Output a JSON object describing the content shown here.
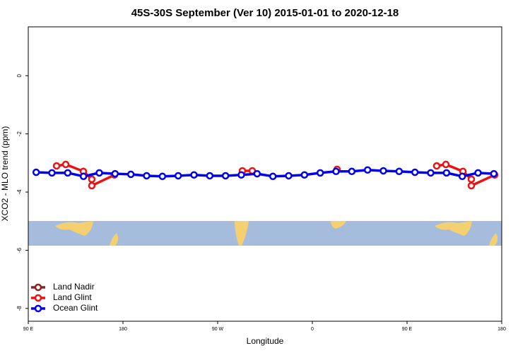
{
  "chart_data": {
    "type": "line",
    "title": "45S-30S September (Ver 10)   2015-01-01 to 2020-12-18",
    "xlabel": "Longitude",
    "ylabel": "XCO2 - MLO trend (ppm)",
    "xlim": [
      90,
      540
    ],
    "xticks": [
      {
        "value": 90,
        "label": "90 E"
      },
      {
        "value": 180,
        "label": "180"
      },
      {
        "value": 270,
        "label": "90 W"
      },
      {
        "value": 360,
        "label": "0"
      },
      {
        "value": 450,
        "label": "90 E"
      },
      {
        "value": 540,
        "label": "180"
      }
    ],
    "ylim": [
      -8.44,
      1.68
    ],
    "yticks": [
      -8,
      -6,
      -4,
      -2,
      0
    ],
    "legend": "bottom-left",
    "series": [
      {
        "name": "Land Nadir",
        "color": "#8b2323",
        "x": [],
        "values": []
      },
      {
        "name": "Land Glint",
        "color": "#ee1111",
        "x": [
          116.9,
          125.6,
          142.4,
          150.4,
          150.4,
          171.9,
          null,
          293.5,
          302.9,
          null,
          383.5,
          null,
          478.2,
          486.9,
          503.1,
          511.1,
          511.1,
          533.3
        ],
        "values": [
          -3.1,
          -3.05,
          -3.29,
          -3.56,
          -3.78,
          -3.41,
          null,
          -3.27,
          -3.27,
          null,
          -3.22,
          null,
          -3.1,
          -3.05,
          -3.29,
          -3.56,
          -3.78,
          -3.41
        ]
      },
      {
        "name": "Ocean Glint",
        "color": "#0000ee",
        "x": [
          97.5,
          112.5,
          127.5,
          142.5,
          157.5,
          172.5,
          187.5,
          202.5,
          217.5,
          232.5,
          247.5,
          262.5,
          277.5,
          292.5,
          307.5,
          322.5,
          337.5,
          352.5,
          367.5,
          382.5,
          397.5,
          412.5,
          427.5,
          442.5,
          457.5,
          472.5,
          487.5,
          502.5,
          517.5,
          532.5
        ],
        "values": [
          -3.32,
          -3.34,
          -3.34,
          -3.46,
          -3.34,
          -3.37,
          -3.39,
          -3.44,
          -3.46,
          -3.44,
          -3.41,
          -3.44,
          -3.44,
          -3.41,
          -3.37,
          -3.46,
          -3.44,
          -3.41,
          -3.34,
          -3.29,
          -3.29,
          -3.24,
          -3.27,
          -3.29,
          -3.32,
          -3.34,
          -3.34,
          -3.46,
          -3.34,
          -3.37
        ]
      }
    ]
  }
}
